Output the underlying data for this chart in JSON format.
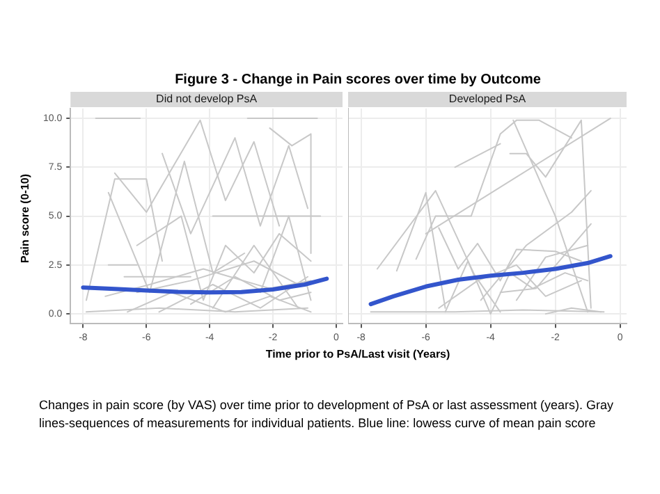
{
  "chart_data": [
    {
      "type": "line",
      "title": "Figure 3 - Change in Pain scores over time by Outcome",
      "subtitle": "Did not develop PsA",
      "xlabel": "Time prior to PsA/Last visit (Years)",
      "ylabel": "Pain score (0-10)",
      "annotations": [
        "Changes in pain score (by VAS) over time prior to development of PsA or last assessment (years). Gray lines-sequences of measurements for individual patients. Blue line: lowess curve of mean pain score"
      ],
      "xlim": [
        -8.4,
        0.2
      ],
      "ylim": [
        -0.5,
        10.5
      ],
      "xticks": [
        -8,
        -6,
        -4,
        -2,
        0
      ],
      "yticks": [
        {
          "value": 0,
          "label": "0.0"
        },
        {
          "value": 2.5,
          "label": "2.5"
        },
        {
          "value": 5,
          "label": "5.0"
        },
        {
          "value": 7.5,
          "label": "7.5"
        },
        {
          "value": 10,
          "label": "10.0"
        }
      ],
      "grid": true,
      "legend": false,
      "marker": "none",
      "series": [
        {
          "color": "#c8c8c8",
          "x": [
            -7.6,
            -6.2
          ],
          "values": [
            10,
            10
          ]
        },
        {
          "color": "#c8c8c8",
          "x": [
            -2.8,
            -0.6
          ],
          "values": [
            10,
            10
          ]
        },
        {
          "color": "#c8c8c8",
          "x": [
            -7.0,
            -6.0,
            -4.3,
            -3.5,
            -2.6,
            -1.8
          ],
          "values": [
            7.2,
            5.2,
            9.9,
            5.8,
            8.8,
            4.5
          ]
        },
        {
          "color": "#c8c8c8",
          "x": [
            -7.9,
            -7.0,
            -6.0,
            -5.5
          ],
          "values": [
            0.7,
            6.9,
            6.9,
            2.7
          ]
        },
        {
          "color": "#c8c8c8",
          "x": [
            -5.5,
            -4.6,
            -3.2,
            -2.4,
            -1.5,
            -0.9
          ],
          "values": [
            8.2,
            4.1,
            9.0,
            4.5,
            8.6,
            5.4
          ]
        },
        {
          "color": "#c8c8c8",
          "x": [
            -7.2,
            -5.9,
            -4.8,
            -3.9,
            -2.9
          ],
          "values": [
            6.2,
            1.1,
            7.8,
            2.1,
            3.1
          ]
        },
        {
          "color": "#c8c8c8",
          "x": [
            -3.9,
            -0.5
          ],
          "values": [
            5.0,
            5.0
          ]
        },
        {
          "color": "#c8c8c8",
          "x": [
            -7.2,
            -6.3
          ],
          "values": [
            2.5,
            2.5
          ]
        },
        {
          "color": "#c8c8c8",
          "x": [
            -6.7,
            -4.6
          ],
          "values": [
            1.9,
            1.9
          ]
        },
        {
          "color": "#c8c8c8",
          "x": [
            -2.1,
            -1.4,
            -0.8,
            -0.8
          ],
          "values": [
            9.5,
            8.6,
            9.2,
            3.1
          ]
        },
        {
          "color": "#c8c8c8",
          "x": [
            -6.3,
            -4.9,
            -4.2,
            -3.5,
            -2.6,
            -1.8,
            -0.8
          ],
          "values": [
            3.5,
            5.0,
            0.7,
            3.5,
            2.1,
            4.1,
            2.7
          ]
        },
        {
          "color": "#c8c8c8",
          "x": [
            -7.9,
            -5.6,
            -3.2,
            -0.9
          ],
          "values": [
            0.1,
            0.3,
            0.1,
            0.3
          ]
        },
        {
          "color": "#c8c8c8",
          "x": [
            -6.3,
            -4.6,
            -2.6,
            -1.2
          ],
          "values": [
            1.1,
            1.7,
            2.7,
            1.5
          ]
        },
        {
          "color": "#c8c8c8",
          "x": [
            -5.6,
            -3.9,
            -2.4,
            -0.9
          ],
          "values": [
            0.1,
            1.5,
            0.3,
            1.9
          ]
        },
        {
          "color": "#c8c8c8",
          "x": [
            -4.6,
            -3.2,
            -1.8,
            -0.8
          ],
          "values": [
            0.5,
            1.9,
            0.7,
            1.1
          ]
        },
        {
          "color": "#c8c8c8",
          "x": [
            -7.3,
            -5.9,
            -4.2,
            -2.1,
            -0.8
          ],
          "values": [
            0.9,
            1.5,
            2.3,
            1.3,
            1.7
          ]
        },
        {
          "color": "#c8c8c8",
          "x": [
            -3.9,
            -2.6,
            -1.2
          ],
          "values": [
            0.3,
            3.5,
            0.3
          ]
        },
        {
          "color": "#c8c8c8",
          "x": [
            -2.4,
            -1.5,
            -0.8
          ],
          "values": [
            1.1,
            5.0,
            0.7
          ]
        },
        {
          "color": "#c8c8c8",
          "x": [
            -6.6,
            -5.2,
            -3.5,
            -2.1,
            -0.8
          ],
          "values": [
            0.1,
            1.1,
            0.1,
            0.9,
            0.1
          ]
        },
        {
          "color": "#3355cc",
          "x": [
            -8,
            -7,
            -6,
            -5,
            -4,
            -3,
            -2,
            -1,
            -0.3
          ],
          "values": [
            1.35,
            1.28,
            1.2,
            1.13,
            1.1,
            1.12,
            1.25,
            1.5,
            1.8
          ]
        }
      ]
    },
    {
      "type": "line",
      "subtitle": "Developed PsA",
      "xlim": [
        -8.4,
        0.2
      ],
      "ylim": [
        -0.5,
        10.5
      ],
      "xticks": [
        -8,
        -6,
        -4,
        -2,
        0
      ],
      "yticks": [
        0,
        2.5,
        5,
        7.5,
        10
      ],
      "tick_labels": "x",
      "grid": true,
      "legend": false,
      "marker": "none",
      "series": [
        {
          "color": "#c8c8c8",
          "x": [
            -6.0,
            -0.3
          ],
          "values": [
            4.1,
            10.0
          ]
        },
        {
          "color": "#c8c8c8",
          "x": [
            -7.5,
            -5.7,
            -4.5,
            -3.7
          ],
          "values": [
            2.3,
            6.3,
            2.0,
            0.1
          ]
        },
        {
          "color": "#c8c8c8",
          "x": [
            -5.1,
            -3.7
          ],
          "values": [
            7.5,
            8.7
          ]
        },
        {
          "color": "#c8c8c8",
          "x": [
            -6.3,
            -5.7,
            -4.6,
            -3.7,
            -3.2,
            -2.5,
            -1.5
          ],
          "values": [
            2.8,
            5.0,
            5.0,
            9.2,
            9.9,
            9.9,
            9.0
          ]
        },
        {
          "color": "#c8c8c8",
          "x": [
            -3.4,
            -2.9,
            -2.3,
            -1.2,
            -0.9
          ],
          "values": [
            8.2,
            8.2,
            7.0,
            9.9,
            0.3
          ]
        },
        {
          "color": "#c8c8c8",
          "x": [
            -3.3,
            -2.0,
            -1.0
          ],
          "values": [
            9.9,
            5.0,
            0.1
          ]
        },
        {
          "color": "#c8c8c8",
          "x": [
            -6.9,
            -6.0,
            -5.4
          ],
          "values": [
            2.2,
            6.2,
            0.3
          ]
        },
        {
          "color": "#c8c8c8",
          "x": [
            -5.6,
            -5.0,
            -4.4,
            -3.7,
            -3.2,
            -2.0,
            -1.2
          ],
          "values": [
            4.4,
            2.3,
            3.6,
            1.7,
            3.3,
            3.2,
            2.7
          ]
        },
        {
          "color": "#c8c8c8",
          "x": [
            -5.4,
            -4.7,
            -4.0,
            -3.4,
            -2.7,
            -1.7,
            -1.0
          ],
          "values": [
            0.1,
            2.7,
            0.0,
            2.1,
            1.3,
            2.1,
            1.7
          ]
        },
        {
          "color": "#c8c8c8",
          "x": [
            -4.3,
            -2.9,
            -1.5,
            -0.9
          ],
          "values": [
            0.7,
            3.5,
            5.2,
            6.3
          ]
        },
        {
          "color": "#c8c8c8",
          "x": [
            -3.7,
            -2.6,
            -0.9
          ],
          "values": [
            1.1,
            1.3,
            4.6
          ]
        },
        {
          "color": "#c8c8c8",
          "x": [
            -3.2,
            -2.3,
            -1.0
          ],
          "values": [
            0.7,
            2.9,
            3.5
          ]
        },
        {
          "color": "#c8c8c8",
          "x": [
            -7.7,
            -5.1,
            -3.0,
            -0.5
          ],
          "values": [
            0.1,
            0.1,
            0.2,
            0.1
          ]
        },
        {
          "color": "#c8c8c8",
          "x": [
            -2.3,
            -1.5,
            -0.6
          ],
          "values": [
            0.0,
            0.3,
            0.1
          ]
        },
        {
          "color": "#c8c8c8",
          "x": [
            -5.6,
            -4.4,
            -3.2,
            -2.3,
            -1.2
          ],
          "values": [
            0.3,
            1.7,
            2.5,
            0.9,
            1.7
          ]
        },
        {
          "color": "#3355cc",
          "x": [
            -7.7,
            -7,
            -6,
            -5,
            -4,
            -3,
            -2,
            -1,
            -0.3
          ],
          "values": [
            0.5,
            0.9,
            1.4,
            1.75,
            1.95,
            2.1,
            2.3,
            2.6,
            2.95
          ]
        }
      ]
    }
  ]
}
